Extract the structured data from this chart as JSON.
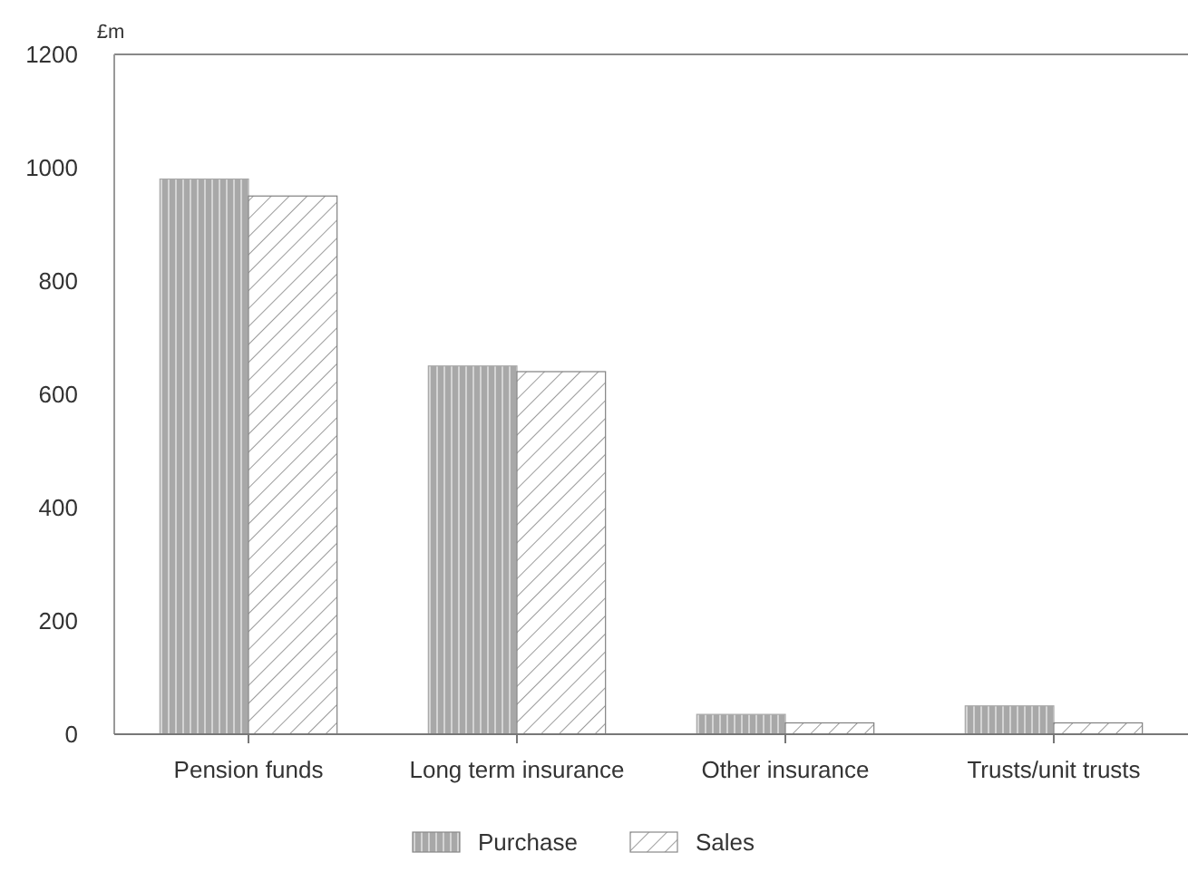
{
  "chart_data": {
    "type": "bar",
    "ylabel": "£m",
    "categories": [
      "Pension funds",
      "Long term insurance",
      "Other insurance",
      "Trusts/unit trusts"
    ],
    "series": [
      {
        "name": "Purchase",
        "color": "#a8a8a8",
        "values": [
          980,
          650,
          35,
          50
        ]
      },
      {
        "name": "Sales",
        "color": "#808080",
        "values": [
          950,
          640,
          20,
          20
        ]
      }
    ],
    "ylim": [
      0,
      1200
    ],
    "yticks": [
      0,
      200,
      400,
      600,
      800,
      1000,
      1200
    ],
    "grid": false,
    "legend": "bottom"
  }
}
